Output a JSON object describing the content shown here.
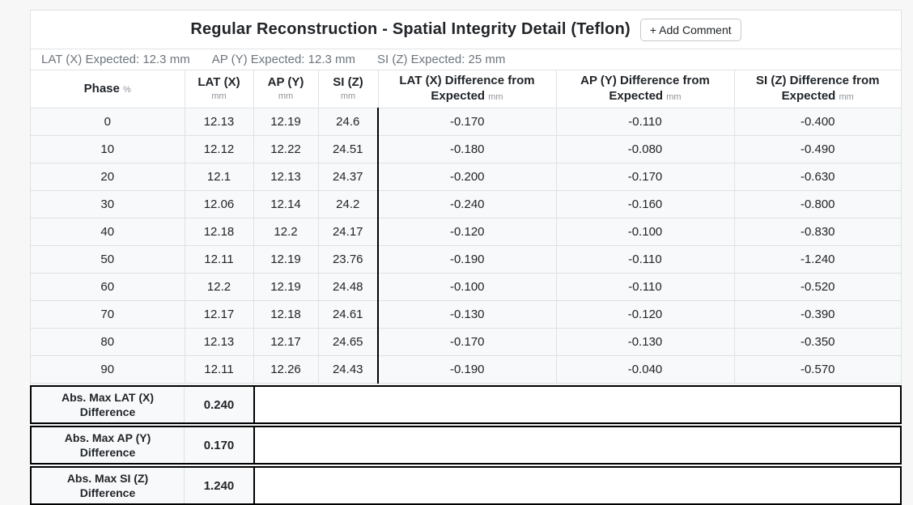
{
  "title_bar": {
    "title": "Regular Reconstruction - Spatial Integrity Detail (Teflon)",
    "add_comment_button": "+ Add Comment"
  },
  "expected_bar": {
    "items": [
      "LAT (X) Expected: 12.3 mm",
      "AP (Y) Expected: 12.3 mm",
      "SI (Z) Expected: 25 mm"
    ]
  },
  "table": {
    "headers": {
      "phase": {
        "label": "Phase",
        "unit": "%"
      },
      "lat": {
        "label": "LAT (X)",
        "unit": "mm"
      },
      "ap": {
        "label": "AP (Y)",
        "unit": "mm"
      },
      "si": {
        "label": "SI (Z)",
        "unit": "mm"
      },
      "lat_diff": {
        "label": "LAT (X) Difference from Expected",
        "unit": "mm"
      },
      "ap_diff": {
        "label": "AP (Y) Difference from Expected",
        "unit": "mm"
      },
      "si_diff": {
        "label": "SI (Z) Difference from Expected",
        "unit": "mm"
      }
    },
    "rows": [
      {
        "phase": "0",
        "lat": "12.13",
        "ap": "12.19",
        "si": "24.6",
        "lat_diff": "-0.170",
        "ap_diff": "-0.110",
        "si_diff": "-0.400"
      },
      {
        "phase": "10",
        "lat": "12.12",
        "ap": "12.22",
        "si": "24.51",
        "lat_diff": "-0.180",
        "ap_diff": "-0.080",
        "si_diff": "-0.490"
      },
      {
        "phase": "20",
        "lat": "12.1",
        "ap": "12.13",
        "si": "24.37",
        "lat_diff": "-0.200",
        "ap_diff": "-0.170",
        "si_diff": "-0.630"
      },
      {
        "phase": "30",
        "lat": "12.06",
        "ap": "12.14",
        "si": "24.2",
        "lat_diff": "-0.240",
        "ap_diff": "-0.160",
        "si_diff": "-0.800"
      },
      {
        "phase": "40",
        "lat": "12.18",
        "ap": "12.2",
        "si": "24.17",
        "lat_diff": "-0.120",
        "ap_diff": "-0.100",
        "si_diff": "-0.830"
      },
      {
        "phase": "50",
        "lat": "12.11",
        "ap": "12.19",
        "si": "23.76",
        "lat_diff": "-0.190",
        "ap_diff": "-0.110",
        "si_diff": "-1.240"
      },
      {
        "phase": "60",
        "lat": "12.2",
        "ap": "12.19",
        "si": "24.48",
        "lat_diff": "-0.100",
        "ap_diff": "-0.110",
        "si_diff": "-0.520"
      },
      {
        "phase": "70",
        "lat": "12.17",
        "ap": "12.18",
        "si": "24.61",
        "lat_diff": "-0.130",
        "ap_diff": "-0.120",
        "si_diff": "-0.390"
      },
      {
        "phase": "80",
        "lat": "12.13",
        "ap": "12.17",
        "si": "24.65",
        "lat_diff": "-0.170",
        "ap_diff": "-0.130",
        "si_diff": "-0.350"
      },
      {
        "phase": "90",
        "lat": "12.11",
        "ap": "12.26",
        "si": "24.43",
        "lat_diff": "-0.190",
        "ap_diff": "-0.040",
        "si_diff": "-0.570"
      }
    ]
  },
  "summary": [
    {
      "label": "Abs. Max LAT (X) Difference",
      "value": "0.240"
    },
    {
      "label": "Abs. Max AP (Y) Difference",
      "value": "0.170"
    },
    {
      "label": "Abs. Max SI (Z) Difference",
      "value": "1.240"
    }
  ],
  "colors": {
    "page_bg": "#f7f7f7",
    "card_bg": "#ffffff",
    "row_bg": "#f8f9fa",
    "table_border": "#dee2e6",
    "black_divider": "#000000",
    "text": "#212529",
    "muted_text": "#6c757d",
    "unit_text": "#8d959c"
  }
}
